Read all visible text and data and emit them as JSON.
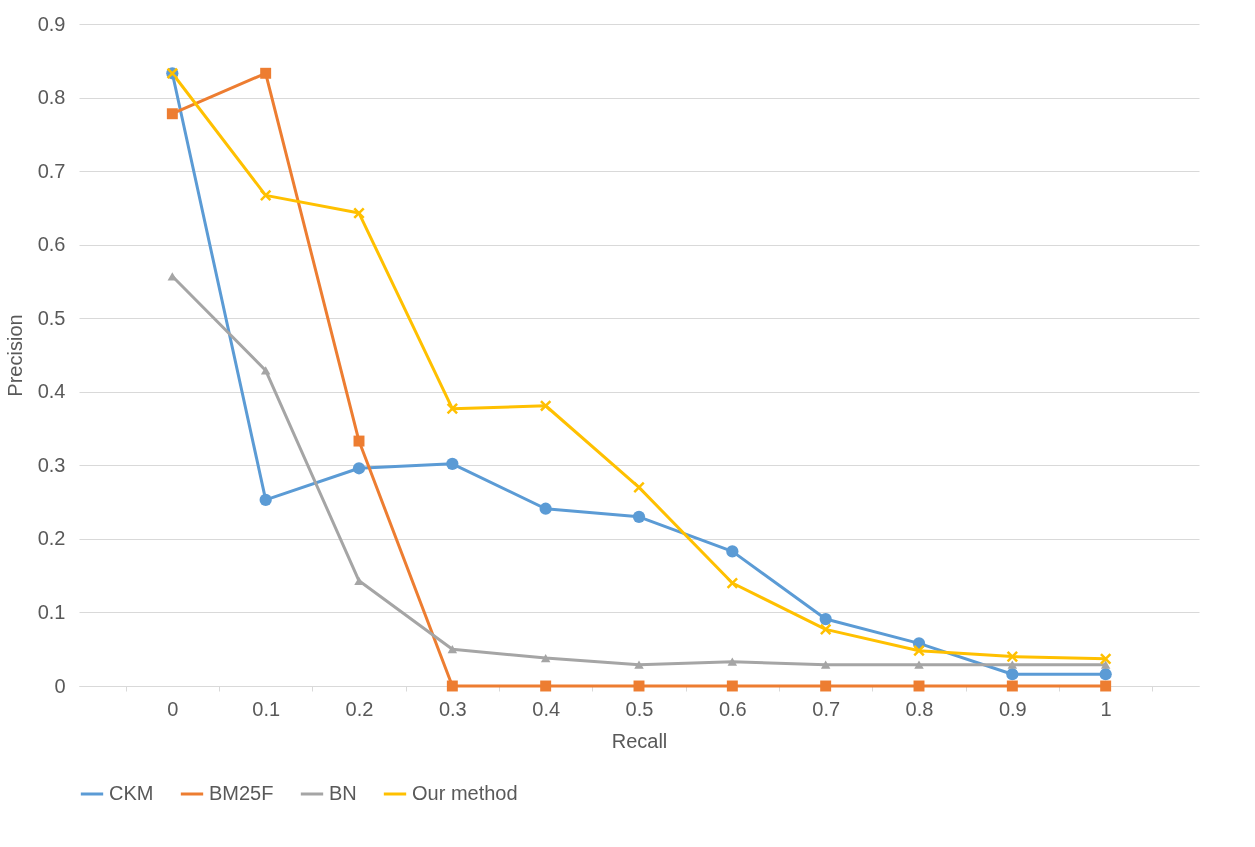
{
  "chart_data": {
    "type": "line",
    "xlabel": "Recall",
    "ylabel": "Precision",
    "categories": [
      "0",
      "0.1",
      "0.2",
      "0.3",
      "0.4",
      "0.5",
      "0.6",
      "0.7",
      "0.8",
      "0.9",
      "1"
    ],
    "ylim": [
      0,
      0.9
    ],
    "yticks": [
      0,
      0.1,
      0.2,
      0.3,
      0.4,
      0.5,
      0.6,
      0.7,
      0.8,
      0.9
    ],
    "grid": "y",
    "legend": "bottom",
    "line_style": "solid",
    "series": [
      {
        "name": "CKM",
        "color": "#5b9bd5",
        "marker": "circle",
        "values": [
          0.833,
          0.253,
          0.296,
          0.302,
          0.241,
          0.23,
          0.183,
          0.091,
          0.058,
          0.016,
          0.016
        ]
      },
      {
        "name": "BM25F",
        "color": "#ed7d31",
        "marker": "square",
        "values": [
          0.778,
          0.833,
          0.333,
          0,
          0,
          0,
          0,
          0,
          0,
          0,
          0
        ]
      },
      {
        "name": "BN",
        "color": "#a5a5a5",
        "marker": "triangle",
        "values": [
          0.557,
          0.429,
          0.143,
          0.05,
          0.038,
          0.029,
          0.033,
          0.029,
          0.029,
          0.029,
          0.029
        ]
      },
      {
        "name": "Our method",
        "color": "#ffc000",
        "marker": "cross",
        "values": [
          0.833,
          0.667,
          0.643,
          0.377,
          0.381,
          0.27,
          0.14,
          0.077,
          0.048,
          0.04,
          0.037
        ]
      }
    ]
  }
}
